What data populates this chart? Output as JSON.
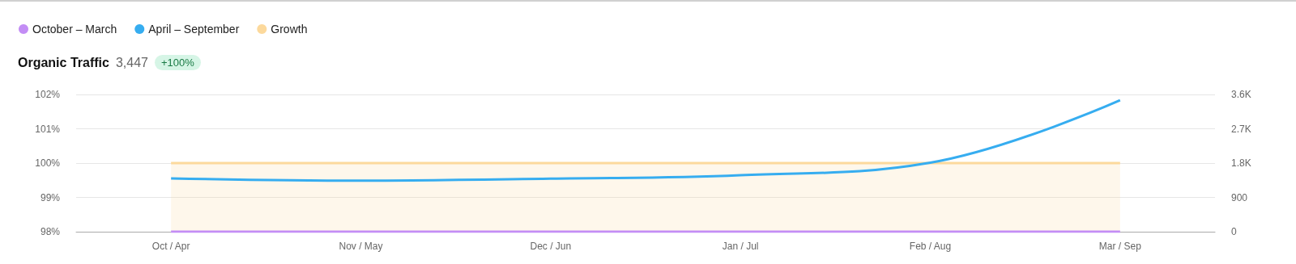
{
  "chart_data": {
    "type": "line",
    "title": "Organic Traffic",
    "subtitle": "3,447",
    "annotations": [
      "+100%"
    ],
    "categories": [
      "Oct / Apr",
      "Nov / May",
      "Dec / Jun",
      "Jan / Jul",
      "Feb / Aug",
      "Mar / Sep"
    ],
    "series": [
      {
        "name": "October – March",
        "color": "#c38df5",
        "axis": "y2",
        "values": [
          0,
          0,
          0,
          0,
          0,
          0
        ]
      },
      {
        "name": "April – September",
        "color": "#36adf0",
        "axis": "y2",
        "values": [
          1400,
          1340,
          1390,
          1480,
          1810,
          3447
        ]
      },
      {
        "name": "Growth",
        "type": "area",
        "color": "#fcd99c",
        "values": [
          100,
          100,
          100,
          100,
          100,
          100
        ]
      }
    ],
    "ylim": [
      98,
      102
    ],
    "yticks": [
      {
        "value": 98,
        "label": "98%"
      },
      {
        "value": 99,
        "label": "99%"
      },
      {
        "value": 100,
        "label": "100%"
      },
      {
        "value": 101,
        "label": "101%"
      },
      {
        "value": 102,
        "label": "102%"
      }
    ],
    "y2lim": [
      0,
      3600
    ],
    "y2ticks": [
      0,
      900,
      {
        "value": 1800,
        "label": "1.8K"
      },
      {
        "value": 2700,
        "label": "2.7K"
      },
      {
        "value": 3600,
        "label": "3.6K"
      }
    ],
    "grid": "y",
    "legend": "top left",
    "marker": "none"
  }
}
